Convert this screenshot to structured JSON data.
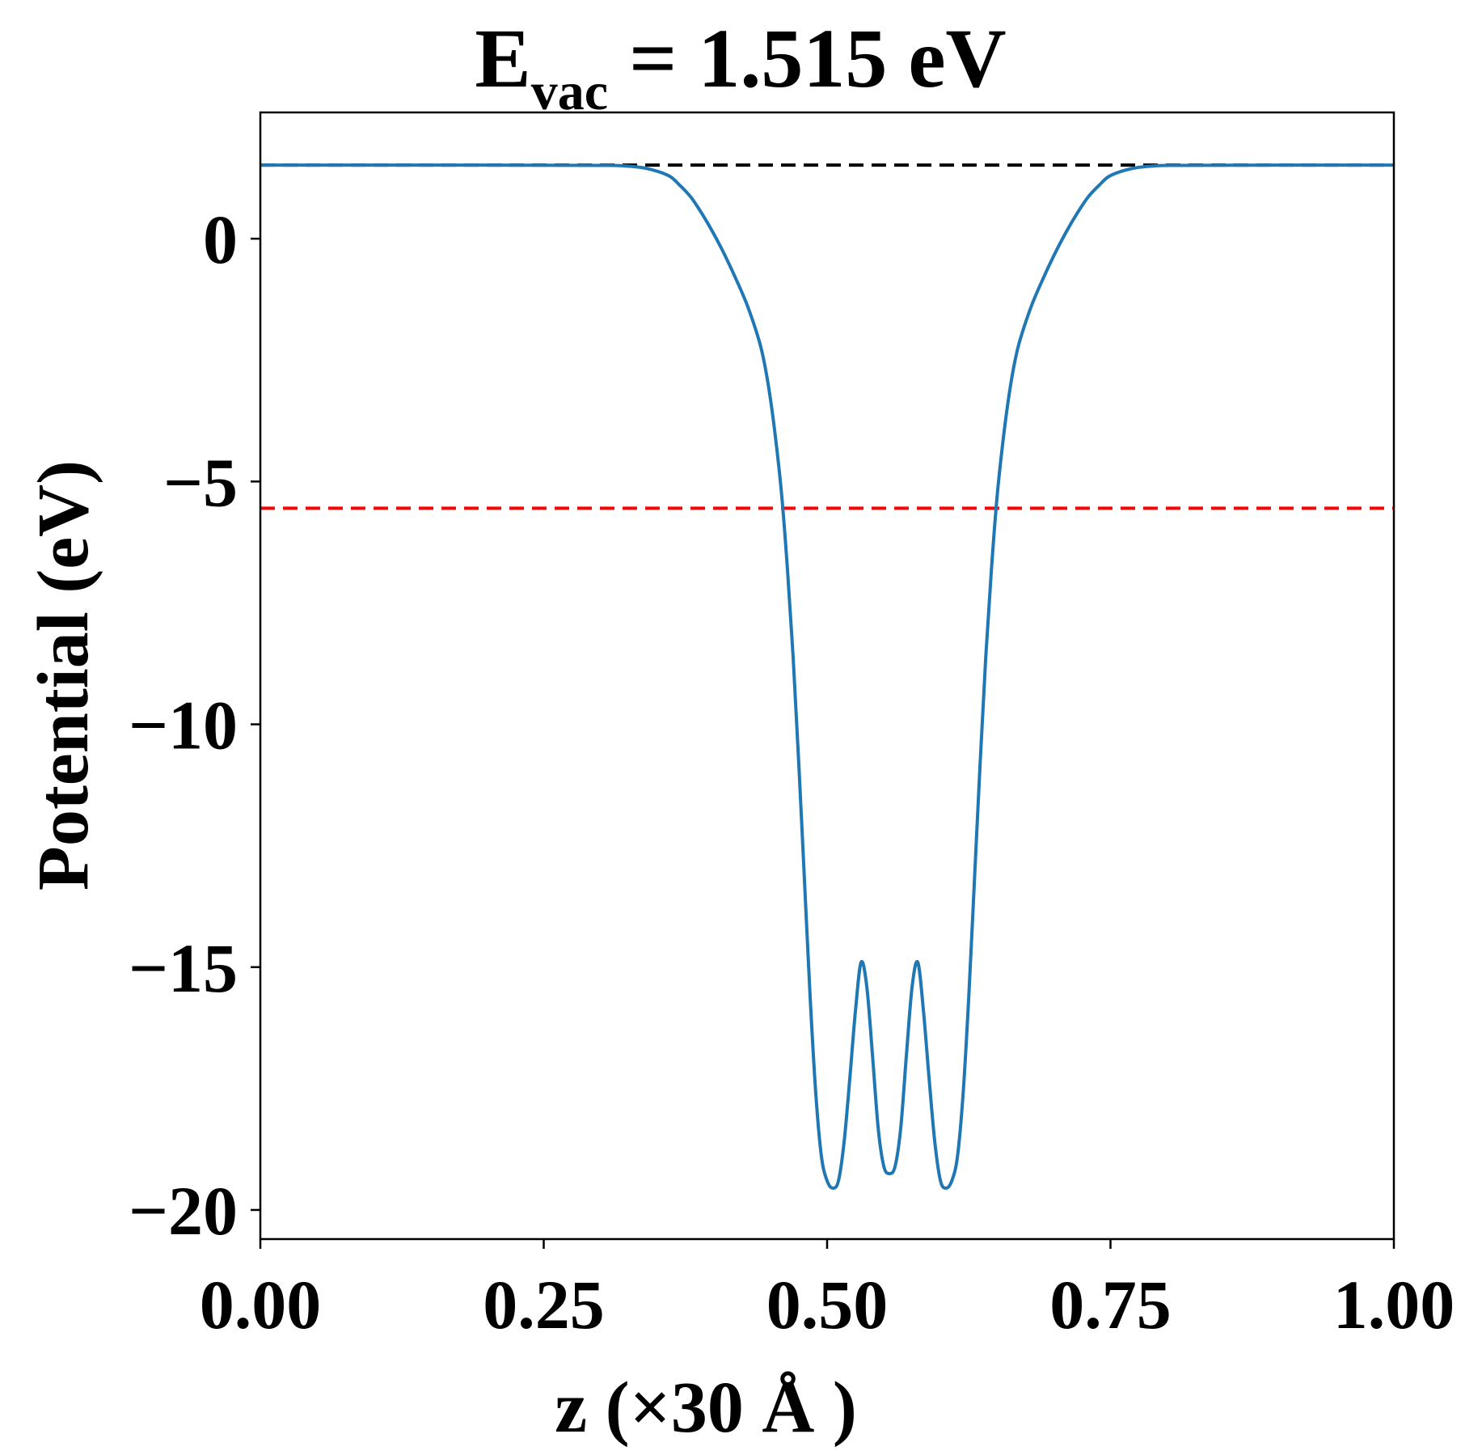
{
  "chart_data": {
    "type": "line",
    "title": {
      "main": "E",
      "subscript": "vac",
      "rest": " = 1.515 eV"
    },
    "xlabel": "z (×30 Å )",
    "ylabel": "Potential (eV)",
    "xlim": [
      0.0,
      1.0
    ],
    "ylim": [
      -20.6,
      2.6
    ],
    "x_ticks": [
      0.0,
      0.25,
      0.5,
      0.75,
      1.0
    ],
    "x_tick_labels": [
      "0.00",
      "0.25",
      "0.50",
      "0.75",
      "1.00"
    ],
    "y_ticks": [
      0,
      -5,
      -10,
      -15,
      -20
    ],
    "y_tick_labels": [
      "0",
      "−5",
      "−10",
      "−15",
      "−20"
    ],
    "grid": false,
    "legend": "none",
    "reference_lines": [
      {
        "y": 1.515,
        "color": "#000000",
        "style": "dashed"
      },
      {
        "y": -5.55,
        "color": "#ff0000",
        "style": "dashed"
      }
    ],
    "series": [
      {
        "color": "#1f77b4",
        "points": [
          [
            0.0,
            1.515
          ],
          [
            0.1,
            1.515
          ],
          [
            0.2,
            1.515
          ],
          [
            0.3,
            1.51
          ],
          [
            0.32,
            1.5
          ],
          [
            0.34,
            1.45
          ],
          [
            0.36,
            1.3
          ],
          [
            0.37,
            1.1
          ],
          [
            0.38,
            0.85
          ],
          [
            0.39,
            0.5
          ],
          [
            0.4,
            0.1
          ],
          [
            0.41,
            -0.35
          ],
          [
            0.42,
            -0.85
          ],
          [
            0.43,
            -1.4
          ],
          [
            0.44,
            -2.1
          ],
          [
            0.445,
            -2.6
          ],
          [
            0.45,
            -3.3
          ],
          [
            0.455,
            -4.2
          ],
          [
            0.46,
            -5.3
          ],
          [
            0.465,
            -6.8
          ],
          [
            0.47,
            -8.6
          ],
          [
            0.475,
            -10.8
          ],
          [
            0.48,
            -13.2
          ],
          [
            0.485,
            -15.6
          ],
          [
            0.49,
            -17.6
          ],
          [
            0.495,
            -18.9
          ],
          [
            0.5,
            -19.4
          ],
          [
            0.505,
            -19.55
          ],
          [
            0.51,
            -19.4
          ],
          [
            0.515,
            -18.6
          ],
          [
            0.52,
            -17.3
          ],
          [
            0.525,
            -15.9
          ],
          [
            0.53,
            -14.9
          ],
          [
            0.535,
            -15.4
          ],
          [
            0.54,
            -16.8
          ],
          [
            0.545,
            -18.3
          ],
          [
            0.55,
            -19.1
          ],
          [
            0.555,
            -19.25
          ],
          [
            0.56,
            -19.1
          ],
          [
            0.565,
            -18.3
          ],
          [
            0.57,
            -16.8
          ],
          [
            0.575,
            -15.4
          ],
          [
            0.58,
            -14.9
          ],
          [
            0.585,
            -15.9
          ],
          [
            0.59,
            -17.3
          ],
          [
            0.595,
            -18.6
          ],
          [
            0.6,
            -19.4
          ],
          [
            0.605,
            -19.55
          ],
          [
            0.61,
            -19.4
          ],
          [
            0.615,
            -18.9
          ],
          [
            0.62,
            -17.6
          ],
          [
            0.625,
            -15.6
          ],
          [
            0.63,
            -13.2
          ],
          [
            0.635,
            -10.8
          ],
          [
            0.64,
            -8.6
          ],
          [
            0.645,
            -6.8
          ],
          [
            0.65,
            -5.3
          ],
          [
            0.655,
            -4.2
          ],
          [
            0.66,
            -3.3
          ],
          [
            0.665,
            -2.6
          ],
          [
            0.67,
            -2.1
          ],
          [
            0.68,
            -1.4
          ],
          [
            0.69,
            -0.85
          ],
          [
            0.7,
            -0.35
          ],
          [
            0.71,
            0.1
          ],
          [
            0.72,
            0.5
          ],
          [
            0.73,
            0.85
          ],
          [
            0.74,
            1.1
          ],
          [
            0.75,
            1.3
          ],
          [
            0.77,
            1.45
          ],
          [
            0.79,
            1.5
          ],
          [
            0.81,
            1.51
          ],
          [
            0.9,
            1.515
          ],
          [
            1.0,
            1.515
          ]
        ]
      }
    ]
  }
}
